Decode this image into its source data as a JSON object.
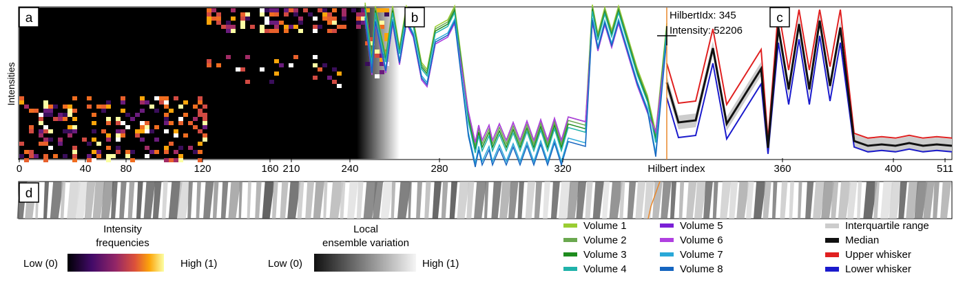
{
  "panel_letters": [
    "a",
    "b",
    "c",
    "d"
  ],
  "tooltip": {
    "line1": "HilbertIdx: 345",
    "line2": "Intensity: 52206"
  },
  "x_axis_label": "Hilbert index",
  "y_axis_label": "Intensities",
  "colorbar_intensity": {
    "title_line1": "Intensity",
    "title_line2": "frequencies",
    "low": "Low (0)",
    "high": "High (1)"
  },
  "colorbar_variation": {
    "title_line1": "Local",
    "title_line2": "ensemble variation",
    "low": "Low (0)",
    "high": "High (1)"
  },
  "colors": {
    "volumes": [
      "#9acd32",
      "#6aa84f",
      "#1e8c1e",
      "#20b2aa",
      "#7b1fd6",
      "#b040e0",
      "#29a8d8",
      "#1565c0"
    ],
    "iqr": "#cccccc",
    "median": "#111111",
    "upper_whisker": "#e02020",
    "lower_whisker": "#1a1acc",
    "highlight": "#e8872a"
  },
  "chart_data": {
    "type": "line",
    "xlabel": "Hilbert index",
    "ylabel": "Intensities",
    "ticks": [
      {
        "label": "0",
        "x": 0
      },
      {
        "label": "40",
        "x": 40
      },
      {
        "label": "80",
        "x": 80
      },
      {
        "label": "120",
        "x": 120
      },
      {
        "label": "160",
        "x": 160
      },
      {
        "label": "210",
        "x": 210
      },
      {
        "label": "240",
        "x": 240
      },
      {
        "label": "280",
        "x": 280
      },
      {
        "label": "320",
        "x": 320
      },
      {
        "label": "360",
        "x": 360
      },
      {
        "label": "400",
        "x": 400
      },
      {
        "label": "511",
        "x": 511
      }
    ],
    "highlight_x": 345,
    "legend_volumes": [
      {
        "name": "Volume 1",
        "color": "#9acd32"
      },
      {
        "name": "Volume 2",
        "color": "#6aa84f"
      },
      {
        "name": "Volume 3",
        "color": "#1e8c1e"
      },
      {
        "name": "Volume 4",
        "color": "#20b2aa"
      },
      {
        "name": "Volume 5",
        "color": "#7b1fd6"
      },
      {
        "name": "Volume 6",
        "color": "#b040e0"
      },
      {
        "name": "Volume 7",
        "color": "#29a8d8"
      },
      {
        "name": "Volume 8",
        "color": "#1565c0"
      }
    ],
    "legend_stats": [
      {
        "name": "Interquartile range",
        "color": "#cccccc"
      },
      {
        "name": "Median",
        "color": "#111111"
      },
      {
        "name": "Upper whisker",
        "color": "#e02020"
      },
      {
        "name": "Lower whisker",
        "color": "#1a1acc"
      }
    ]
  }
}
